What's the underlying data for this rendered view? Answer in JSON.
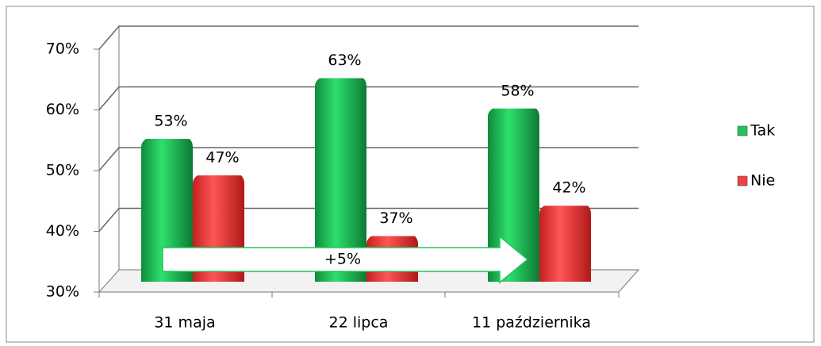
{
  "chart_data": {
    "type": "bar",
    "categories": [
      "31 maja",
      "22 lipca",
      "11 października"
    ],
    "series": [
      {
        "name": "Tak",
        "color": "#22c55e",
        "values": [
          53,
          63,
          58
        ],
        "value_labels": [
          "53%",
          "63%",
          "58%"
        ]
      },
      {
        "name": "Nie",
        "color": "#ef4444",
        "values": [
          47,
          37,
          42
        ],
        "value_labels": [
          "47%",
          "37%",
          "42%"
        ]
      }
    ],
    "ylim": [
      30,
      70
    ],
    "yticks": [
      {
        "value": 30,
        "label": "30%"
      },
      {
        "value": 40,
        "label": "40%"
      },
      {
        "value": 50,
        "label": "50%"
      },
      {
        "value": 60,
        "label": "60%"
      },
      {
        "value": 70,
        "label": "70%"
      }
    ],
    "grid": true,
    "legend": "right",
    "annotation": "+5%"
  }
}
